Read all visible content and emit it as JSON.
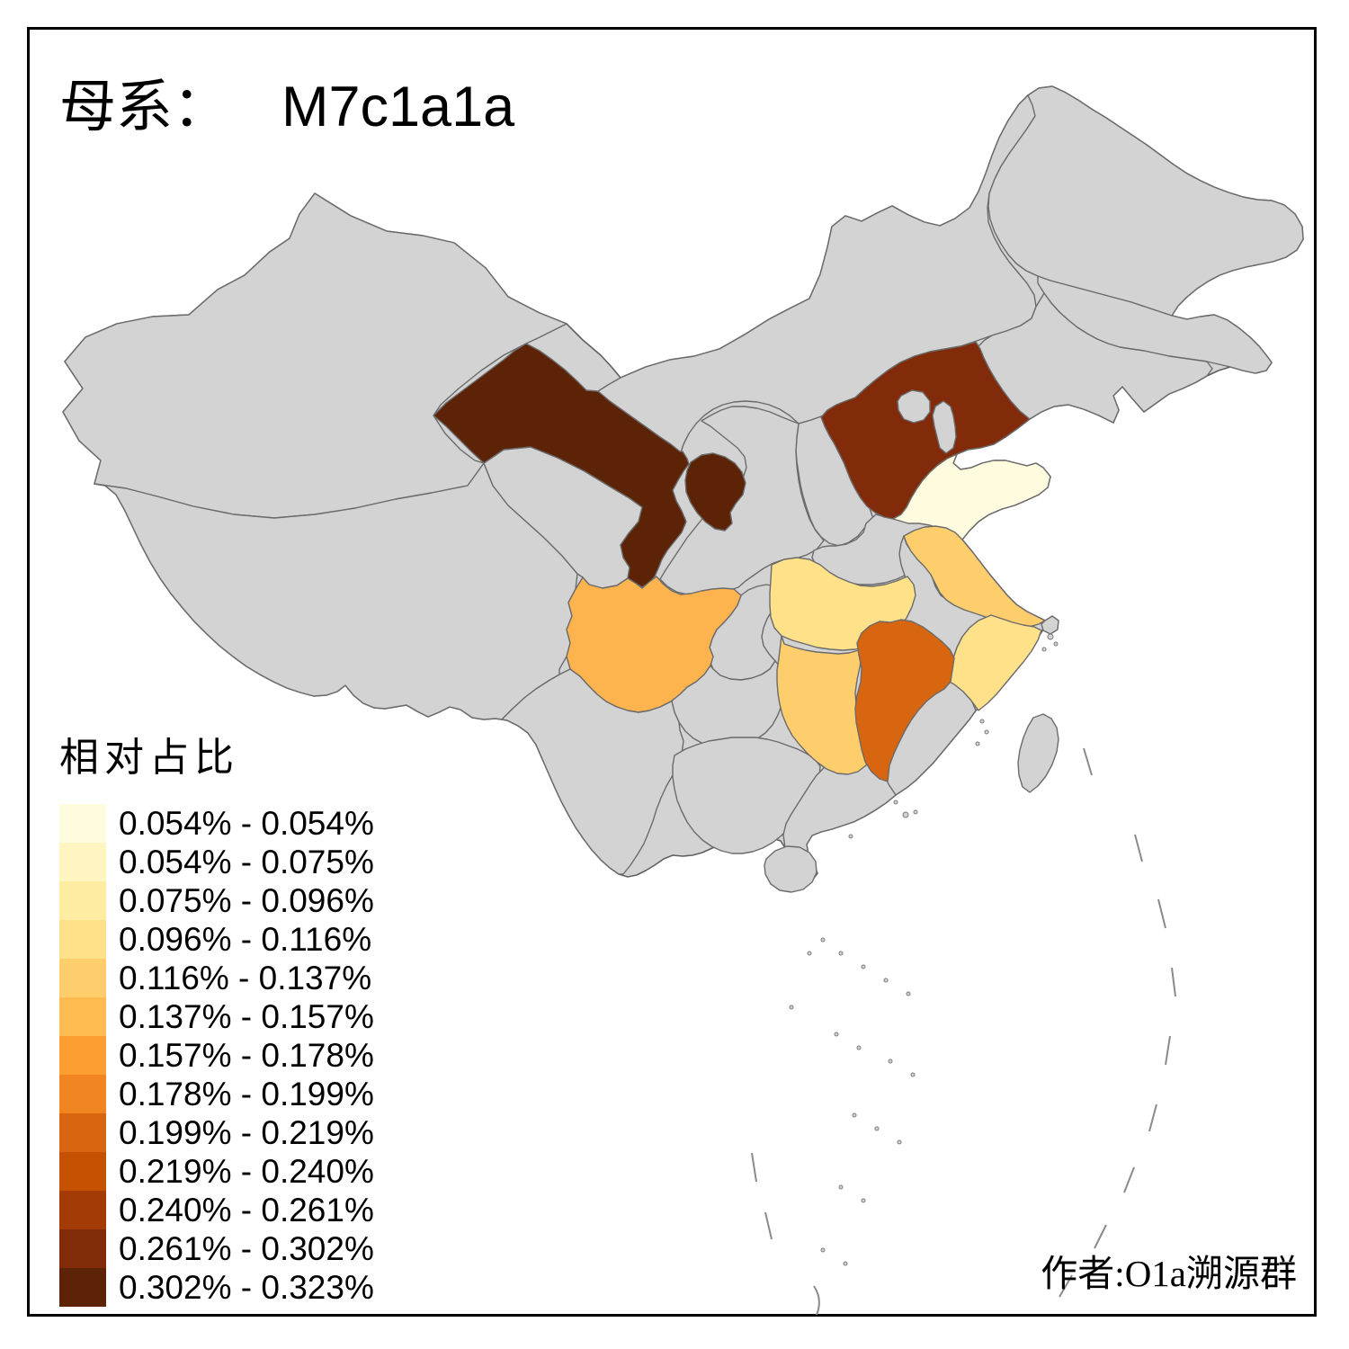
{
  "title": {
    "prefix": "母系：",
    "haplogroup": "M7c1a1a"
  },
  "legend": {
    "title": "相对占比",
    "items": [
      {
        "label": "0.054% - 0.054%",
        "color": "#FEFBDF"
      },
      {
        "label": "0.054% - 0.075%",
        "color": "#FEF5C0"
      },
      {
        "label": "0.075% - 0.096%",
        "color": "#FEECA2"
      },
      {
        "label": "0.096% - 0.116%",
        "color": "#FEE189"
      },
      {
        "label": "0.116% - 0.137%",
        "color": "#FDCE6B"
      },
      {
        "label": "0.137% - 0.157%",
        "color": "#FDBB52"
      },
      {
        "label": "0.157% - 0.178%",
        "color": "#FD9E33"
      },
      {
        "label": "0.178% - 0.199%",
        "color": "#F08522"
      },
      {
        "label": "0.199% - 0.219%",
        "color": "#D8650F"
      },
      {
        "label": "0.219% - 0.240%",
        "color": "#C55103"
      },
      {
        "label": "0.240% - 0.261%",
        "color": "#A43A05"
      },
      {
        "label": "0.261% - 0.302%",
        "color": "#822B0A"
      },
      {
        "label": "0.302% - 0.323%",
        "color": "#5C2307"
      }
    ]
  },
  "author": "作者:O1a溯源群",
  "map": {
    "background": "#FFFFFF",
    "no_data_fill": "#D3D3D3",
    "border_color": "#6B6B6B",
    "regions": {
      "gansu": {
        "fill": "#5C2307",
        "range": "0.302% - 0.323%"
      },
      "ningxia": {
        "fill": "#5C2307",
        "range": "0.302% - 0.323%"
      },
      "hebei": {
        "fill": "#822B0A",
        "range": "0.261% - 0.302%"
      },
      "jiangxi": {
        "fill": "#D8650F",
        "range": "0.199% - 0.219%"
      },
      "sichuan": {
        "fill": "#FDB44E",
        "range": "0.137% - 0.157%"
      },
      "jiangsu": {
        "fill": "#FDCE6B",
        "range": "0.116% - 0.137%"
      },
      "hunan": {
        "fill": "#FDCE6B",
        "range": "0.116% - 0.137%"
      },
      "hubei": {
        "fill": "#FEE189",
        "range": "0.096% - 0.116%"
      },
      "zhejiang": {
        "fill": "#FEE189",
        "range": "0.096% - 0.116%"
      },
      "shandong": {
        "fill": "#FEFBDF",
        "range": "0.054% - 0.054%"
      }
    },
    "no_data_regions": [
      "xinjiang",
      "tibet",
      "qinghai",
      "inner-mongolia",
      "heilongjiang",
      "jilin",
      "liaoning",
      "beijing",
      "tianjin",
      "shanxi",
      "shaanxi",
      "henan",
      "anhui",
      "shanghai",
      "chongqing",
      "guizhou",
      "yunnan",
      "guangxi",
      "guangdong",
      "hainan",
      "fujian",
      "taiwan"
    ]
  }
}
